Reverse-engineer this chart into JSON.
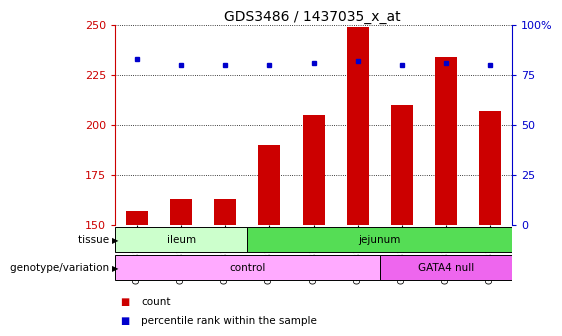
{
  "title": "GDS3486 / 1437035_x_at",
  "samples": [
    "GSM281932",
    "GSM281933",
    "GSM281934",
    "GSM281926",
    "GSM281927",
    "GSM281928",
    "GSM281929",
    "GSM281930",
    "GSM281931"
  ],
  "counts": [
    157,
    163,
    163,
    190,
    205,
    249,
    210,
    234,
    207
  ],
  "percentile_ranks": [
    83,
    80,
    80,
    80,
    81,
    82,
    80,
    81,
    80
  ],
  "ylim_left": [
    150,
    250
  ],
  "ylim_right": [
    0,
    100
  ],
  "yticks_left": [
    150,
    175,
    200,
    225,
    250
  ],
  "yticks_right": [
    0,
    25,
    50,
    75,
    100
  ],
  "bar_color": "#cc0000",
  "dot_color": "#0000cc",
  "tissue_groups": [
    {
      "label": "ileum",
      "start": 0,
      "end": 3,
      "color": "#ccffcc"
    },
    {
      "label": "jejunum",
      "start": 3,
      "end": 9,
      "color": "#55dd55"
    }
  ],
  "genotype_groups": [
    {
      "label": "control",
      "start": 0,
      "end": 6,
      "color": "#ffaaff"
    },
    {
      "label": "GATA4 null",
      "start": 6,
      "end": 9,
      "color": "#ee66ee"
    }
  ],
  "left_label_tissue": "tissue",
  "left_label_genotype": "genotype/variation",
  "legend_count": "count",
  "legend_percentile": "percentile rank within the sample",
  "bg_color": "#ffffff",
  "tick_label_color_left": "#cc0000",
  "tick_label_color_right": "#0000cc",
  "title_fontsize": 10,
  "bar_width": 0.5
}
